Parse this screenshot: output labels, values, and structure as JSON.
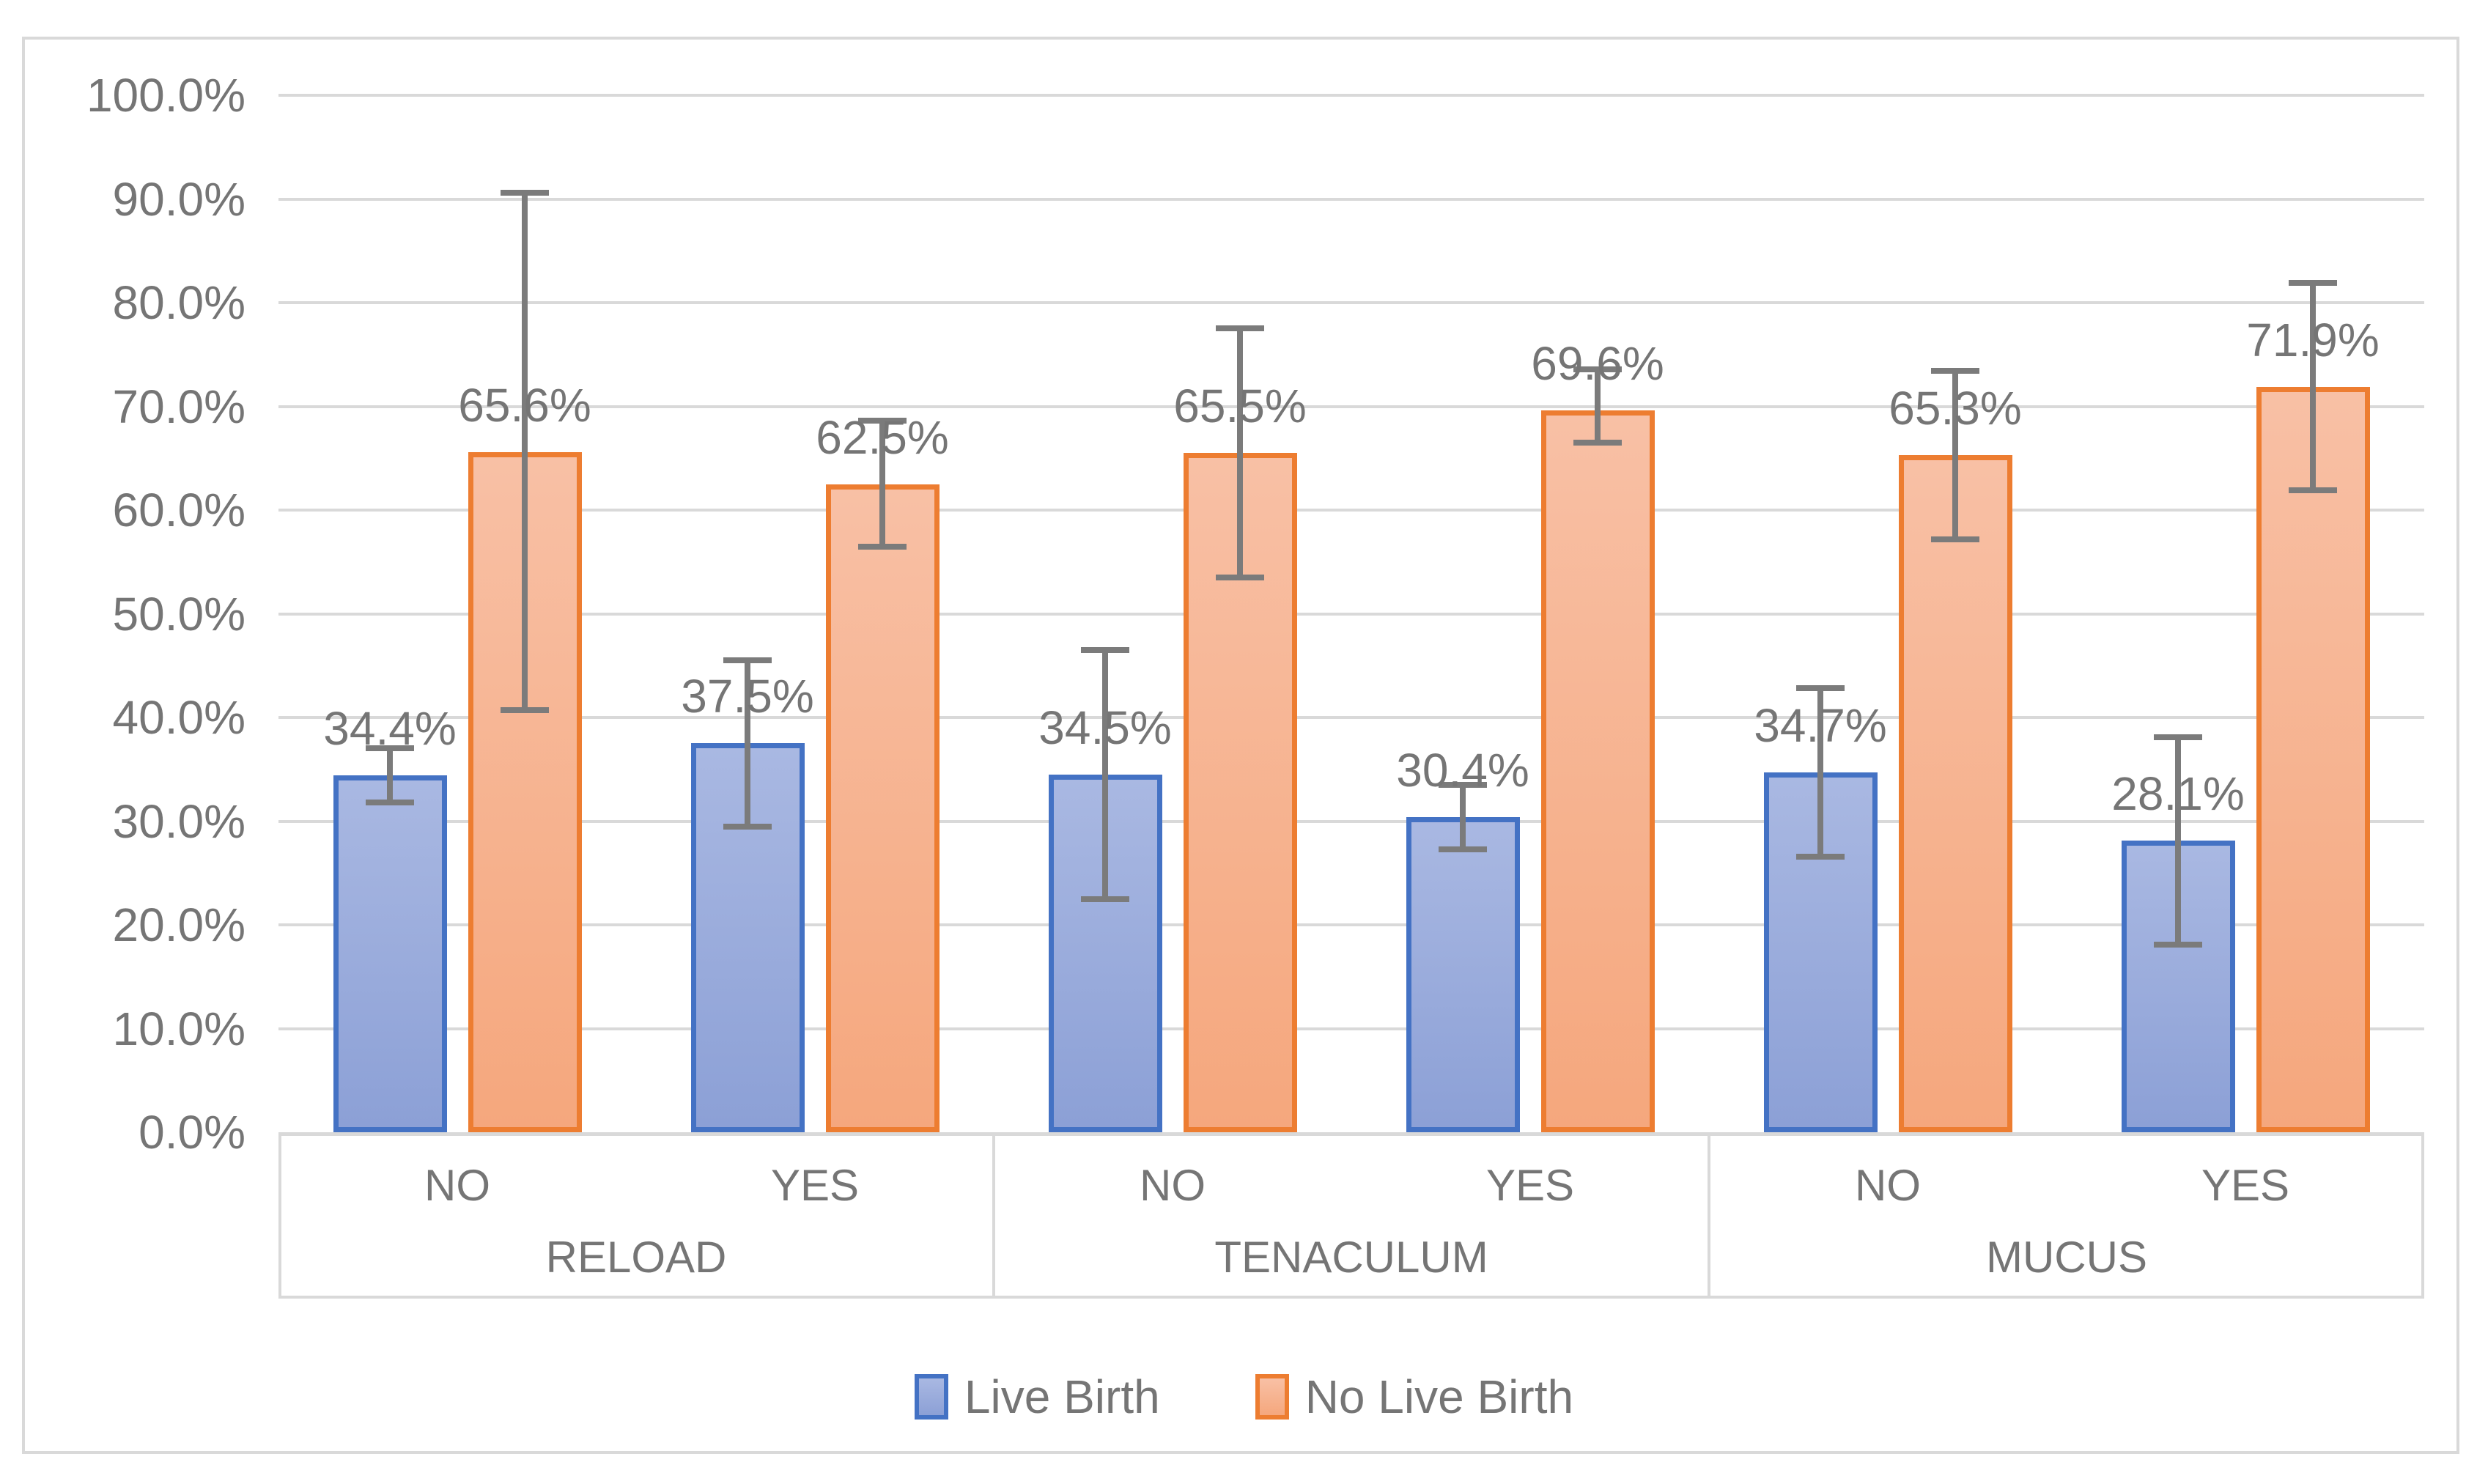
{
  "chart_data": {
    "type": "bar",
    "title": "",
    "y_axis": {
      "min": 0,
      "max": 100,
      "tick_step": 10,
      "format": "percent",
      "tick_labels": [
        "0.0%",
        "10.0%",
        "20.0%",
        "30.0%",
        "40.0%",
        "50.0%",
        "60.0%",
        "70.0%",
        "80.0%",
        "90.0%",
        "100.0%"
      ]
    },
    "grid": "horizontal",
    "gridline_color": "#D9D9D9",
    "text_color": "#757575",
    "error_bar_color": "#7B7B7B",
    "series": [
      {
        "name": "Live Birth",
        "border_color": "#4472C4",
        "fill_top": "#A9B8E2",
        "fill_bottom": "#8CA0D6"
      },
      {
        "name": "No Live Birth",
        "border_color": "#ED7D31",
        "fill_top": "#F8C0A5",
        "fill_bottom": "#F5A77D"
      }
    ],
    "legend_position": "bottom",
    "groups": [
      {
        "label": "RELOAD",
        "clusters": [
          {
            "label": "NO",
            "values": [
              {
                "series": "Live Birth",
                "value": 34.4,
                "label": "34.4%",
                "err_low": 31.8,
                "err_high": 37.0
              },
              {
                "series": "No Live Birth",
                "value": 65.6,
                "label": "65.6%",
                "err_low": 40.7,
                "err_high": 90.6
              }
            ]
          },
          {
            "label": "YES",
            "values": [
              {
                "series": "Live Birth",
                "value": 37.5,
                "label": "37.5%",
                "err_low": 29.5,
                "err_high": 45.5
              },
              {
                "series": "No Live Birth",
                "value": 62.5,
                "label": "62.5%",
                "err_low": 56.5,
                "err_high": 68.6
              }
            ]
          }
        ]
      },
      {
        "label": "TENACULUM",
        "clusters": [
          {
            "label": "NO",
            "values": [
              {
                "series": "Live Birth",
                "value": 34.5,
                "label": "34.5%",
                "err_low": 22.5,
                "err_high": 46.5
              },
              {
                "series": "No Live Birth",
                "value": 65.5,
                "label": "65.5%",
                "err_low": 53.5,
                "err_high": 77.5
              }
            ]
          },
          {
            "label": "YES",
            "values": [
              {
                "series": "Live Birth",
                "value": 30.4,
                "label": "30.4%",
                "err_low": 27.3,
                "err_high": 33.5
              },
              {
                "series": "No Live Birth",
                "value": 69.6,
                "label": "69.6%",
                "err_low": 66.5,
                "err_high": 73.6
              }
            ]
          }
        ]
      },
      {
        "label": "MUCUS",
        "clusters": [
          {
            "label": "NO",
            "values": [
              {
                "series": "Live Birth",
                "value": 34.7,
                "label": "34.7%",
                "err_low": 26.6,
                "err_high": 42.8
              },
              {
                "series": "No Live Birth",
                "value": 65.3,
                "label": "65.3%",
                "err_low": 57.2,
                "err_high": 73.4
              }
            ]
          },
          {
            "label": "YES",
            "values": [
              {
                "series": "Live Birth",
                "value": 28.1,
                "label": "28.1%",
                "err_low": 18.1,
                "err_high": 38.1
              },
              {
                "series": "No Live Birth",
                "value": 71.9,
                "label": "71.9%",
                "err_low": 61.9,
                "err_high": 81.9
              }
            ]
          }
        ]
      }
    ]
  }
}
